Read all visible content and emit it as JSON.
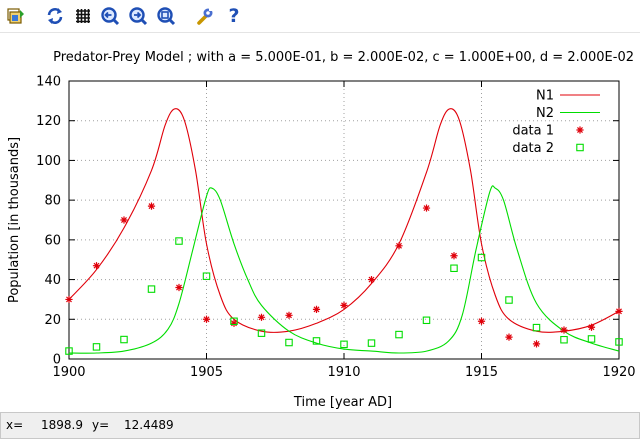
{
  "toolbar": {
    "buttons": [
      {
        "name": "export-icon"
      },
      {
        "name": "replot-icon"
      },
      {
        "name": "grid-icon"
      },
      {
        "name": "previous-zoom-icon"
      },
      {
        "name": "next-zoom-icon"
      },
      {
        "name": "autoscale-icon"
      },
      {
        "name": "settings-icon"
      },
      {
        "name": "help-icon",
        "label": "?"
      }
    ]
  },
  "status": {
    "x_label": "x=",
    "x_value": "1898.9",
    "y_label": "y=",
    "y_value": "12.4489"
  },
  "colors": {
    "series_n1": "#e0000a",
    "series_n2": "#00dd00",
    "grid": "#a0a0a0",
    "toolbar_blue": "#1f4fb5"
  },
  "chart_data": {
    "type": "line",
    "title": "Predator-Prey Model ;  with  a = 5.000E-01, b = 2.000E-02, c = 1.000E+00, d = 2.000E-02",
    "xlabel": "Time [year AD]",
    "ylabel": "Population [in thousands]",
    "xlim": [
      1900,
      1920
    ],
    "ylim": [
      0,
      140
    ],
    "xticks": [
      1900,
      1905,
      1910,
      1915,
      1920
    ],
    "yticks": [
      0,
      20,
      40,
      60,
      80,
      100,
      120,
      140
    ],
    "grid": true,
    "legend_position": "top-right",
    "series": [
      {
        "name": "N1",
        "kind": "line",
        "color": "#e0000a",
        "x": [
          1900,
          1901,
          1902,
          1903,
          1903.5,
          1903.85,
          1904.2,
          1904.6,
          1905,
          1905.5,
          1906,
          1907,
          1908,
          1909,
          1910,
          1911,
          1912,
          1913,
          1913.5,
          1913.85,
          1914.2,
          1914.6,
          1915,
          1915.5,
          1916,
          1917,
          1918,
          1919,
          1920
        ],
        "y": [
          30,
          45,
          66,
          95,
          118,
          126,
          120,
          95,
          58,
          32,
          20,
          14,
          14,
          18,
          25,
          38,
          58,
          94,
          118,
          126,
          120,
          95,
          58,
          32,
          20,
          14,
          14,
          17,
          24
        ]
      },
      {
        "name": "N2",
        "kind": "line",
        "color": "#00dd00",
        "x": [
          1900,
          1901,
          1902,
          1903,
          1903.6,
          1904,
          1904.5,
          1905,
          1905.2,
          1905.5,
          1906,
          1906.5,
          1907,
          1908,
          1909,
          1910,
          1911,
          1912,
          1913,
          1913.8,
          1914.3,
          1914.8,
          1915.3,
          1915.5,
          1915.8,
          1916.3,
          1917,
          1918,
          1919,
          1920
        ],
        "y": [
          3,
          3,
          4,
          8,
          15,
          28,
          55,
          82,
          86,
          80,
          58,
          40,
          27,
          14,
          8,
          5,
          4,
          3,
          4,
          9,
          22,
          55,
          84,
          86,
          80,
          55,
          28,
          14,
          8,
          4
        ]
      },
      {
        "name": "data 1",
        "kind": "points",
        "marker": "asterisk",
        "color": "#e0000a",
        "x": [
          1900,
          1901,
          1902,
          1903,
          1904,
          1905,
          1906,
          1907,
          1908,
          1909,
          1910,
          1911,
          1912,
          1913,
          1914,
          1915,
          1916,
          1917,
          1918,
          1919,
          1920
        ],
        "y": [
          30,
          47,
          70,
          77,
          36,
          20,
          18,
          21,
          22,
          25,
          27,
          40,
          57,
          76,
          52,
          19,
          11,
          7.6,
          14.6,
          16,
          24
        ]
      },
      {
        "name": "data 2",
        "kind": "points",
        "marker": "square",
        "color": "#00dd00",
        "x": [
          1900,
          1901,
          1902,
          1903,
          1904,
          1905,
          1906,
          1907,
          1908,
          1909,
          1910,
          1911,
          1912,
          1913,
          1914,
          1915,
          1916,
          1917,
          1918,
          1919,
          1920
        ],
        "y": [
          4,
          6.1,
          9.8,
          35.2,
          59.4,
          41.7,
          19,
          13,
          8.3,
          9.1,
          7.4,
          8,
          12.3,
          19.5,
          45.7,
          51.1,
          29.7,
          15.8,
          9.7,
          10.1,
          8.6
        ]
      }
    ]
  }
}
